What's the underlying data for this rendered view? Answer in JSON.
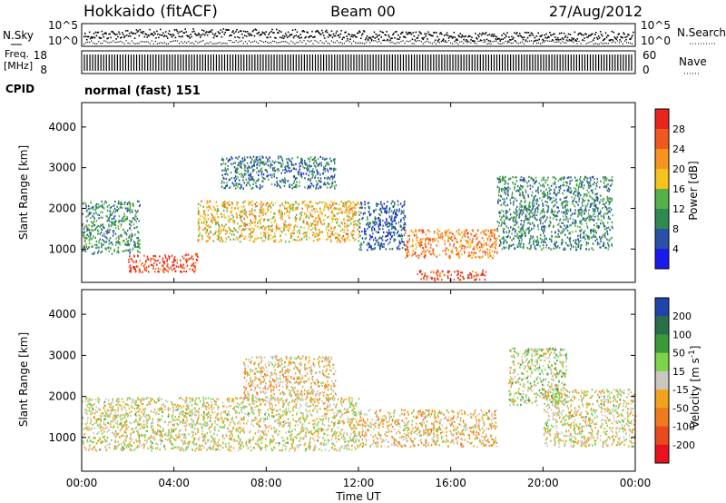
{
  "header": {
    "station": "Hokkaido (fitACF)",
    "beam": "Beam 00",
    "date": "27/Aug/2012"
  },
  "nsky": {
    "label": "N.Sky",
    "right_label": "N.Search",
    "ticks_left": [
      "10^5",
      "10^0"
    ],
    "ticks_right": [
      "10^5",
      "10^0"
    ]
  },
  "freq": {
    "label_line1": "Freq.",
    "label_line2": "[MHz]",
    "ticks_left": [
      "18",
      "8"
    ],
    "right_label": "Nave",
    "ticks_right": [
      "60",
      "0"
    ]
  },
  "cpid": {
    "label": "CPID",
    "text": "normal (fast) 151"
  },
  "power_panel": {
    "ylabel": "Slant Range [km]",
    "yticks": [
      "4000",
      "3000",
      "2000",
      "1000"
    ],
    "colorbar_label": "Power [dB]",
    "colorbar_ticks": [
      "28",
      "24",
      "20",
      "16",
      "12",
      "8",
      "4"
    ],
    "colorbar_colors": [
      "#e8261e",
      "#f05a1e",
      "#f7941d",
      "#f7c21e",
      "#55b04a",
      "#2f8a50",
      "#2b50a8",
      "#1a1aee"
    ]
  },
  "velocity_panel": {
    "ylabel": "Slant Range [km]",
    "yticks": [
      "4000",
      "3000",
      "2000",
      "1000"
    ],
    "colorbar_label": "Velocity [m s",
    "colorbar_label_sup": "-1",
    "colorbar_label_end": "]",
    "colorbar_ticks": [
      "200",
      "100",
      "50",
      "15",
      "-15",
      "-50",
      "-100",
      "-200"
    ],
    "colorbar_colors": [
      "#2244aa",
      "#2a6f4a",
      "#3a9a3a",
      "#7ed34a",
      "#c8c8c0",
      "#f2a21d",
      "#f07a1e",
      "#e84a1e",
      "#e8121e"
    ]
  },
  "xaxis": {
    "label": "Time UT",
    "ticks": [
      "00:00",
      "04:00",
      "08:00",
      "12:00",
      "16:00",
      "20:00",
      "00:00"
    ]
  },
  "chart_data": [
    {
      "type": "scatter",
      "name_panel": "nsky",
      "x_unit": "hours UT",
      "xlim": [
        0,
        24
      ],
      "note": "noise (sky / search) time series, log scale",
      "ylim_log10": [
        0,
        5
      ]
    },
    {
      "type": "heatmap",
      "name_panel": "power",
      "xlim": [
        0,
        24
      ],
      "ylim": [
        180,
        4600
      ],
      "zlim": [
        0,
        30
      ],
      "regions": [
        {
          "t0": 0.0,
          "t1": 2.5,
          "r0": 900,
          "r1": 2200,
          "z": 10
        },
        {
          "t0": 2.0,
          "t1": 5.0,
          "r0": 450,
          "r1": 900,
          "z": 26
        },
        {
          "t0": 5.0,
          "t1": 12.0,
          "r0": 1200,
          "r1": 2200,
          "z": 18
        },
        {
          "t0": 6.0,
          "t1": 11.0,
          "r0": 2500,
          "r1": 3300,
          "z": 8
        },
        {
          "t0": 12.0,
          "t1": 14.0,
          "r0": 1000,
          "r1": 2200,
          "z": 6
        },
        {
          "t0": 14.0,
          "t1": 18.0,
          "r0": 800,
          "r1": 1500,
          "z": 22
        },
        {
          "t0": 14.5,
          "t1": 17.5,
          "r0": 250,
          "r1": 500,
          "z": 26
        },
        {
          "t0": 18.0,
          "t1": 23.0,
          "r0": 1000,
          "r1": 2800,
          "z": 9
        }
      ]
    },
    {
      "type": "heatmap",
      "name_panel": "velocity",
      "xlim": [
        0,
        24
      ],
      "ylim": [
        180,
        4600
      ],
      "zlim": [
        -250,
        250
      ],
      "regions": [
        {
          "t0": 0.0,
          "t1": 12.0,
          "r0": 700,
          "r1": 2000,
          "z": 0
        },
        {
          "t0": 7.0,
          "t1": 11.0,
          "r0": 1900,
          "r1": 3000,
          "z": -40
        },
        {
          "t0": 12.0,
          "t1": 18.0,
          "r0": 800,
          "r1": 1700,
          "z": -30
        },
        {
          "t0": 18.5,
          "t1": 21.0,
          "r0": 1800,
          "r1": 3200,
          "z": 25
        },
        {
          "t0": 20.0,
          "t1": 24.0,
          "r0": 800,
          "r1": 2200,
          "z": 0
        }
      ]
    }
  ]
}
